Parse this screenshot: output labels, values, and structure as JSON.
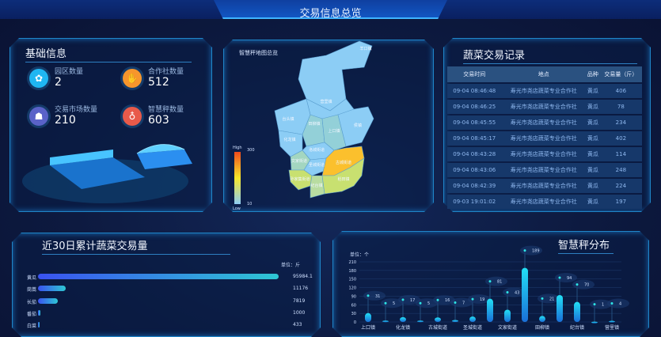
{
  "header": {
    "title": "交易信息总览"
  },
  "basic": {
    "title": "基础信息",
    "stats": [
      {
        "label": "园区数量",
        "value": "2",
        "icon": "sprout-icon",
        "color": "#1fb6f2"
      },
      {
        "label": "合作社数量",
        "value": "512",
        "icon": "handshake-icon",
        "color": "#f7962c"
      },
      {
        "label": "交易市场数量",
        "value": "210",
        "icon": "people-icon",
        "color": "#5a62c8"
      },
      {
        "label": "智慧秤数量",
        "value": "603",
        "icon": "scale-icon",
        "color": "#e85a4a"
      }
    ]
  },
  "map": {
    "title": "智慧秤地图总览",
    "legend": {
      "high": "High",
      "low": "Low",
      "max": "300",
      "min": "10"
    },
    "regions": [
      {
        "name": "羊口镇",
        "color": "#8ccdf5"
      },
      {
        "name": "营里镇",
        "color": "#8ccdf5"
      },
      {
        "name": "台头镇",
        "color": "#8ccdf5"
      },
      {
        "name": "田柳镇",
        "color": "#93d0d8"
      },
      {
        "name": "上口镇",
        "color": "#93d0d8"
      },
      {
        "name": "侯镇",
        "color": "#8ccdf5"
      },
      {
        "name": "化龙镇",
        "color": "#8ccdf5"
      },
      {
        "name": "洛城街道",
        "color": "#8ccdf5"
      },
      {
        "name": "文家街道",
        "color": "#a3d6c0"
      },
      {
        "name": "圣城街道",
        "color": "#8ccdf5"
      },
      {
        "name": "古城街道",
        "color": "#fbc02d"
      },
      {
        "name": "孙家集街道",
        "color": "#c8e070"
      },
      {
        "name": "纪台镇",
        "color": "#b8dca0"
      },
      {
        "name": "稻田镇",
        "color": "#c8e070"
      }
    ]
  },
  "records": {
    "title": "蔬菜交易记录",
    "columns": [
      "交易时间",
      "地点",
      "品种",
      "交易量（斤）"
    ],
    "rows": [
      [
        "09-04 08:46:48",
        "寿光市尧店蔬菜专业合作社",
        "黄瓜",
        "406"
      ],
      [
        "09-04 08:46:25",
        "寿光市尧店蔬菜专业合作社",
        "黄瓜",
        "78"
      ],
      [
        "09-04 08:45:55",
        "寿光市尧店蔬菜专业合作社",
        "黄瓜",
        "234"
      ],
      [
        "09-04 08:45:17",
        "寿光市尧店蔬菜专业合作社",
        "黄瓜",
        "402"
      ],
      [
        "09-04 08:43:28",
        "寿光市尧店蔬菜专业合作社",
        "黄瓜",
        "114"
      ],
      [
        "09-04 08:43:06",
        "寿光市尧店蔬菜专业合作社",
        "黄瓜",
        "248"
      ],
      [
        "09-04 08:42:39",
        "寿光市尧店蔬菜专业合作社",
        "黄瓜",
        "224"
      ],
      [
        "09-03 19:01:02",
        "寿光市尧店蔬菜专业合作社",
        "黄瓜",
        "197"
      ]
    ]
  },
  "chart_data": [
    {
      "type": "bar",
      "orientation": "horizontal",
      "title": "近30日累计蔬菜交易量",
      "unit": "单位：斤",
      "categories": [
        "黄瓜",
        "茼蒿",
        "长茄",
        "番茄",
        "白菜"
      ],
      "values": [
        95984.1,
        11176,
        7819,
        1000,
        433
      ]
    },
    {
      "type": "bar",
      "title": "智慧秤分布",
      "unit": "单位：个",
      "ylim": [
        0,
        210
      ],
      "yticks": [
        0,
        30,
        60,
        90,
        120,
        150,
        180,
        210
      ],
      "categories": [
        "上口镇",
        "",
        "化龙镇",
        "",
        "古城街道",
        "",
        "圣城街道",
        "",
        "文家街道",
        "",
        "田柳镇",
        "",
        "纪台镇",
        "",
        "营里镇"
      ],
      "values": [
        31,
        5,
        17,
        5,
        16,
        7,
        19,
        81,
        43,
        189,
        21,
        94,
        70,
        1,
        4
      ],
      "grid": true
    }
  ]
}
